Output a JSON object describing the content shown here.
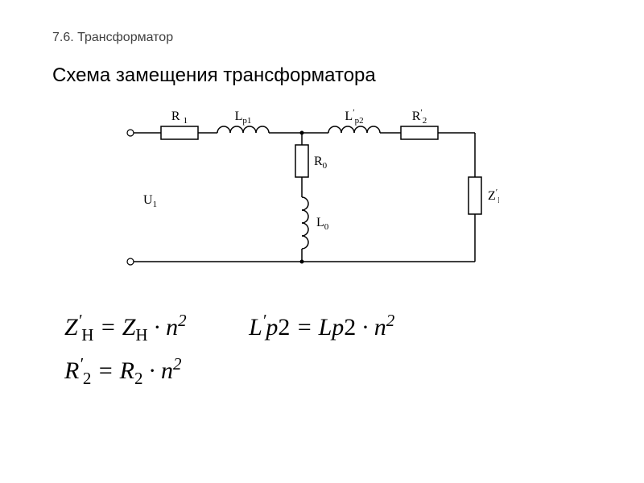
{
  "header": "7.6. Трансформатор",
  "title": "Схема замещения трансформатора",
  "circuit": {
    "labels": {
      "R1": "R₁",
      "Lp1": "Lp1",
      "Lp2": "L′p2",
      "R2": "R′₂",
      "R0": "R₀",
      "L0": "L₀",
      "U1": "U₁",
      "ZH": "Z′ʜ"
    },
    "colors": {
      "wire": "#000000",
      "text": "#000000",
      "bg": "#ffffff"
    }
  },
  "formulas": {
    "f1_html": "Z<sup>&#8242;</sup><sub style=\"font-style:normal\">Н</sub> = Z<sub style=\"font-style:normal\">Н</sub> &middot; n<sup>2</sup>",
    "f2_html": "L<sup>&#8242;</sup>p<span style=\"font-style:normal\">2</span> = Lp<span style=\"font-style:normal\">2</span> &middot; n<sup>2</sup>",
    "f3_html": "R<sup>&#8242;</sup><sub style=\"font-style:normal\">2</sub> = R<sub style=\"font-style:normal\">2</sub> &middot; n<sup>2</sup>"
  }
}
